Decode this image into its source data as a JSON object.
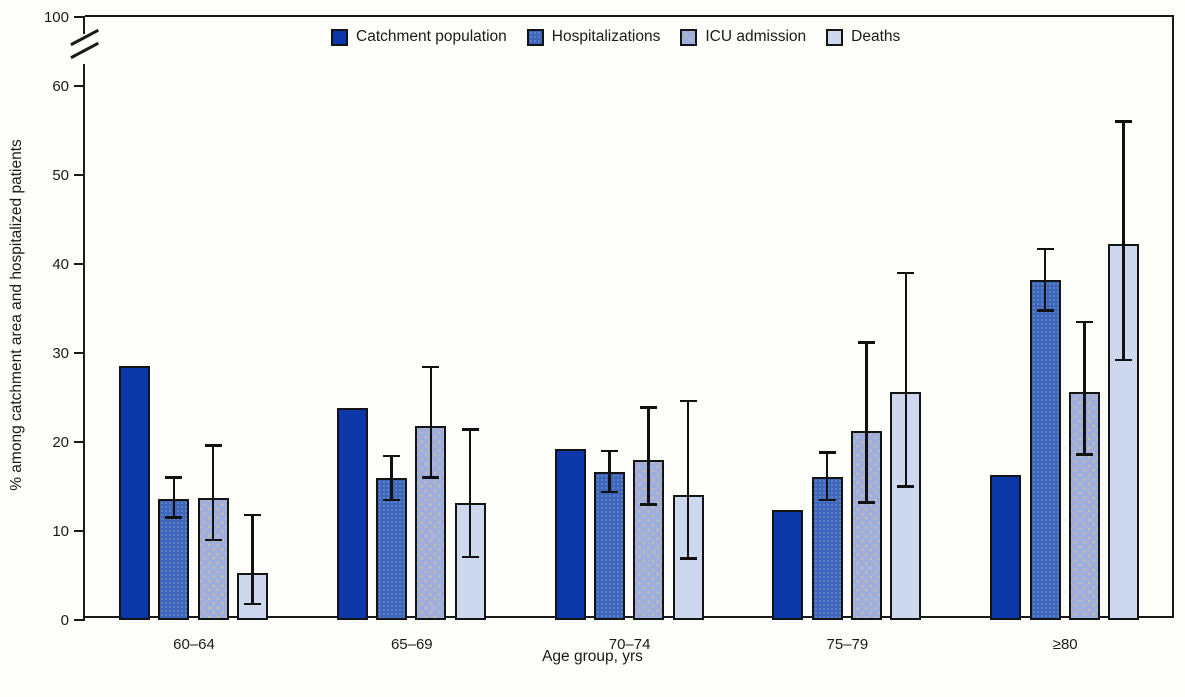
{
  "figure": {
    "y_axis_label": "% among catchment area and hospitalized patients",
    "x_axis_label": "Age group, yrs"
  },
  "chart_data": {
    "type": "bar",
    "title": "",
    "xlabel": "Age group, yrs",
    "ylabel": "% among catchment area and hospitalized patients",
    "grid": false,
    "legend_position": "top",
    "ylim": [
      0,
      60
    ],
    "axis_break": true,
    "y_break_top_tick": "100",
    "y_ticks": [
      "0",
      "10",
      "20",
      "30",
      "40",
      "50",
      "60"
    ],
    "y_tick_values": [
      0,
      10,
      20,
      30,
      40,
      50,
      60
    ],
    "categories": [
      "60–64",
      "65–69",
      "70–74",
      "75–79",
      "≥80"
    ],
    "series": [
      {
        "name": "Catchment population",
        "color": "#0c37a8",
        "values": [
          28.5,
          23.8,
          19.2,
          12.4,
          16.3
        ],
        "error_low": [
          null,
          null,
          null,
          null,
          null
        ],
        "error_high": [
          null,
          null,
          null,
          null,
          null
        ]
      },
      {
        "name": "Hospitalizations",
        "color": "#3e66bb",
        "values": [
          13.6,
          15.9,
          16.6,
          16.1,
          38.2
        ],
        "error_low": [
          11.5,
          13.5,
          14.4,
          13.5,
          34.8
        ],
        "error_high": [
          16.0,
          18.4,
          19.0,
          18.8,
          41.7
        ]
      },
      {
        "name": "ICU admission",
        "color": "#9faedc",
        "values": [
          13.7,
          21.8,
          18.0,
          21.2,
          25.6
        ],
        "error_low": [
          9.0,
          16.0,
          13.0,
          13.2,
          18.6
        ],
        "error_high": [
          19.6,
          28.4,
          23.9,
          31.2,
          33.5
        ]
      },
      {
        "name": "Deaths",
        "color": "#cdd7ee",
        "values": [
          5.3,
          13.1,
          14.0,
          25.6,
          42.2
        ],
        "error_low": [
          1.8,
          7.1,
          6.9,
          15.0,
          29.2
        ],
        "error_high": [
          11.8,
          21.4,
          24.6,
          39.0,
          56.0
        ]
      }
    ]
  }
}
